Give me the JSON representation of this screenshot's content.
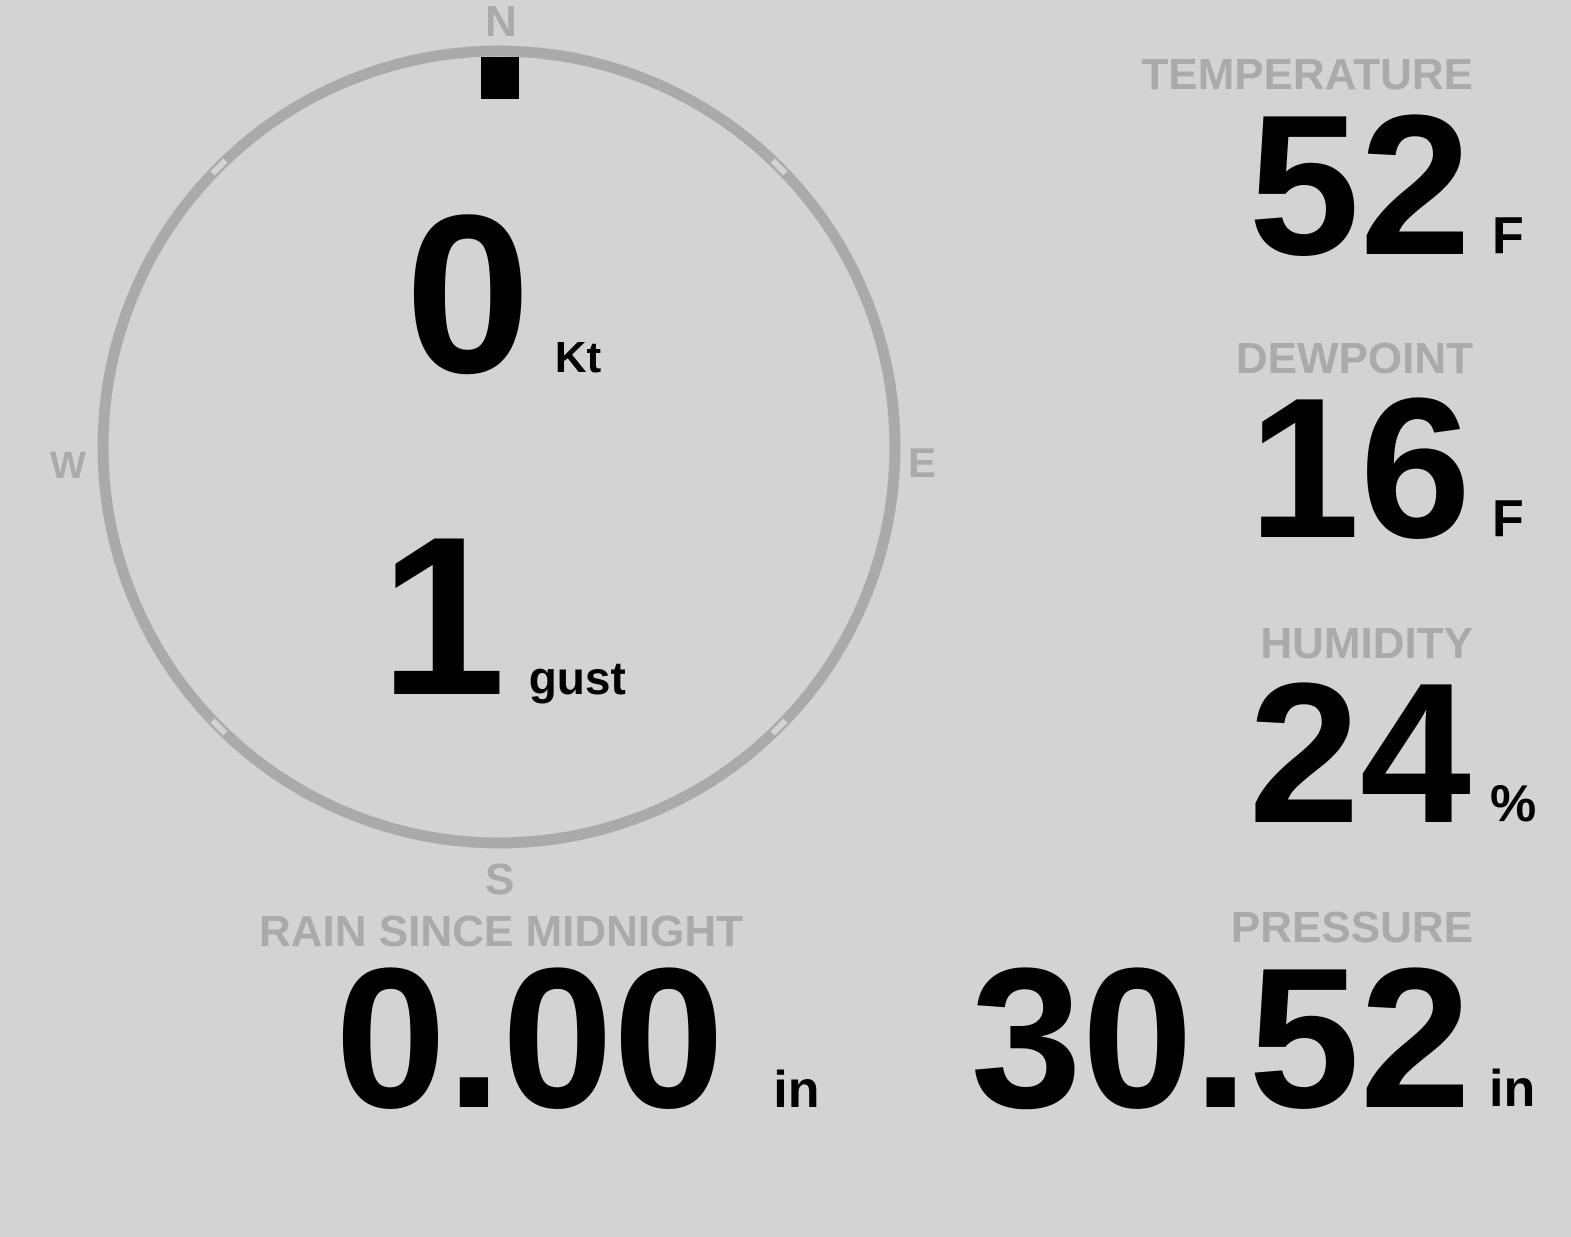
{
  "compass": {
    "north": "N",
    "south": "S",
    "east": "E",
    "west": "W",
    "wind_direction_deg": 0,
    "ring_color": "#aaaaaa",
    "marker_color": "#000000"
  },
  "wind": {
    "speed": "0",
    "speed_unit": "Kt",
    "gust": "1",
    "gust_unit": "gust"
  },
  "temperature": {
    "label": "TEMPERATURE",
    "value": "52",
    "unit": "F"
  },
  "dewpoint": {
    "label": "DEWPOINT",
    "value": "16",
    "unit": "F"
  },
  "humidity": {
    "label": "HUMIDITY",
    "value": "24",
    "unit": "%"
  },
  "rain": {
    "label": "RAIN SINCE MIDNIGHT",
    "value": "0.00",
    "unit": "in"
  },
  "pressure": {
    "label": "PRESSURE",
    "value": "30.52",
    "unit": "in"
  },
  "colors": {
    "background": "#d3d3d3",
    "label": "#aaaaaa",
    "value": "#000000"
  }
}
